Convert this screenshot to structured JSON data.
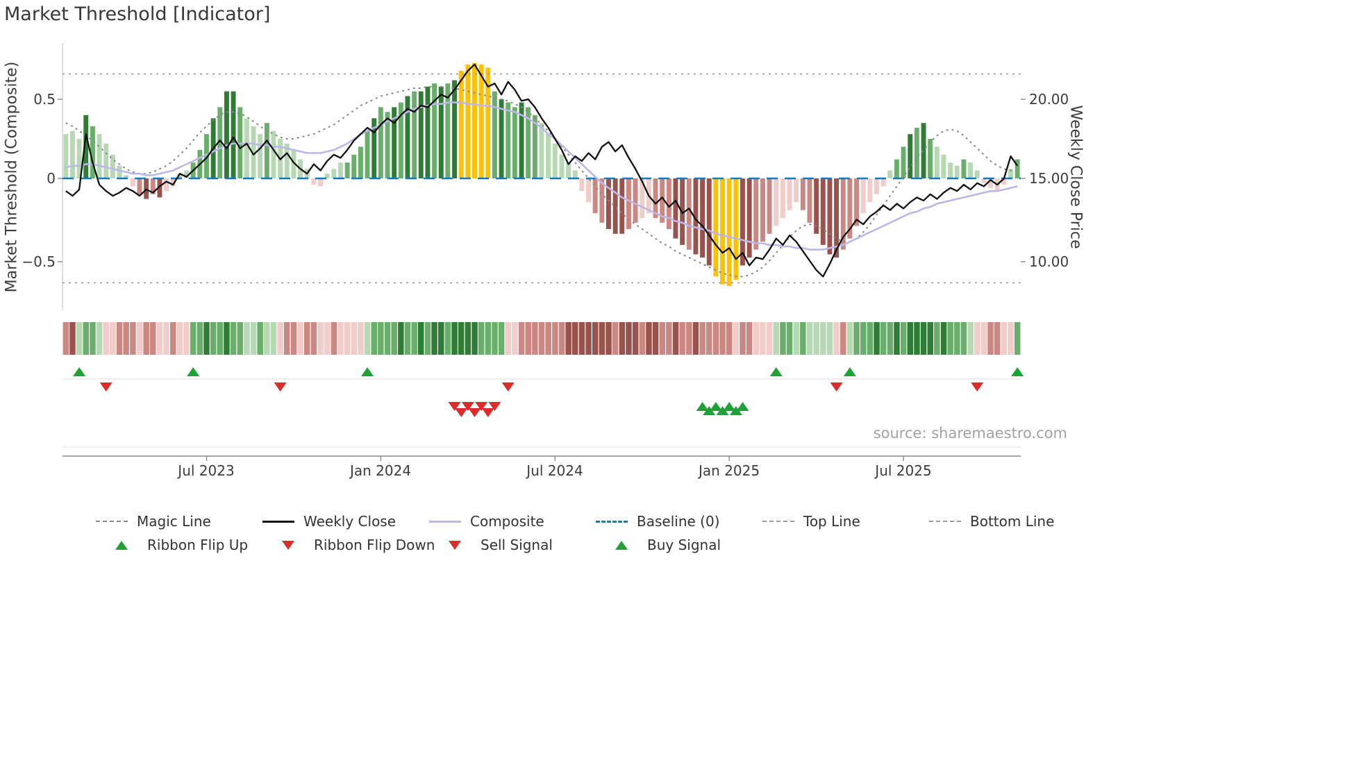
{
  "title": "Market Threshold [Indicator]",
  "source": "source: sharemaestro.com",
  "axes": {
    "left_title": "Market Threshold (Composite)",
    "right_title": "Weekly Close Price",
    "left_ticks": [
      {
        "label": "0.5",
        "value": 0.5
      },
      {
        "label": "0",
        "value": 0
      },
      {
        "label": "−0.5",
        "value": -0.5
      }
    ],
    "right_ticks": [
      {
        "label": "20.00",
        "value": 20
      },
      {
        "label": "15.00",
        "value": 15
      },
      {
        "label": "10.00",
        "value": 10
      }
    ],
    "x_ticks": [
      {
        "label": "Jul 2023",
        "index": 21
      },
      {
        "label": "Jan 2024",
        "index": 47
      },
      {
        "label": "Jul 2024",
        "index": 73
      },
      {
        "label": "Jan 2025",
        "index": 99
      },
      {
        "label": "Jul 2025",
        "index": 125
      }
    ]
  },
  "palette": {
    "green": {
      "1": "#b6d9b4",
      "2": "#69ae6b",
      "3": "#2f7c34"
    },
    "red": {
      "1": "#f1ccc8",
      "2": "#cb8781",
      "3": "#99524c"
    },
    "yellow": "#fcc203",
    "weekly_close": "#111111",
    "composite_line": "#bdb7e8",
    "magic_line": "#8a8a8a",
    "baseline": "#1f77b4",
    "ref_line": "#9a9a9a",
    "marker_green": "#21a038",
    "marker_red": "#dd2c2c"
  },
  "chart_data": {
    "type": "bar",
    "description": "Weekly market-threshold composite histogram (left axis) with overlaid weekly close price (right axis), composite and magic lines, ribbon strip and trade signals. X axis is weekly from Feb 2023 to Nov 2025.",
    "ylim_left": [
      -0.8,
      0.85
    ],
    "ylim_right": [
      7.0,
      23.5
    ],
    "bars": {
      "name": "Threshold Histogram",
      "axis": "left",
      "values": [
        0.28,
        0.3,
        0.25,
        0.4,
        0.33,
        0.28,
        0.22,
        0.15,
        0.08,
        0.02,
        -0.05,
        -0.1,
        -0.13,
        -0.1,
        -0.12,
        -0.08,
        -0.05,
        0.03,
        0.05,
        0.1,
        0.18,
        0.28,
        0.38,
        0.45,
        0.55,
        0.55,
        0.45,
        0.38,
        0.33,
        0.28,
        0.35,
        0.3,
        0.25,
        0.22,
        0.18,
        0.12,
        0.06,
        -0.04,
        -0.05,
        0.03,
        0.06,
        0.1,
        0.1,
        0.15,
        0.2,
        0.3,
        0.38,
        0.45,
        0.42,
        0.45,
        0.48,
        0.52,
        0.55,
        0.55,
        0.58,
        0.6,
        0.58,
        0.6,
        0.62,
        0.68,
        0.72,
        0.73,
        0.72,
        0.7,
        0.55,
        0.5,
        0.48,
        0.45,
        0.48,
        0.45,
        0.4,
        0.35,
        0.28,
        0.22,
        0.15,
        0.1,
        0.05,
        -0.08,
        -0.15,
        -0.22,
        -0.28,
        -0.32,
        -0.35,
        -0.35,
        -0.32,
        -0.28,
        -0.25,
        -0.22,
        -0.25,
        -0.28,
        -0.32,
        -0.38,
        -0.42,
        -0.45,
        -0.48,
        -0.5,
        -0.55,
        -0.62,
        -0.67,
        -0.68,
        -0.64,
        -0.55,
        -0.5,
        -0.45,
        -0.4,
        -0.35,
        -0.3,
        -0.25,
        -0.2,
        -0.15,
        -0.2,
        -0.28,
        -0.35,
        -0.42,
        -0.48,
        -0.5,
        -0.45,
        -0.38,
        -0.3,
        -0.22,
        -0.15,
        -0.1,
        -0.05,
        0.05,
        0.12,
        0.2,
        0.28,
        0.32,
        0.35,
        0.25,
        0.2,
        0.15,
        0.1,
        0.08,
        0.12,
        0.1,
        0.05,
        -0.03,
        -0.06,
        -0.08,
        -0.04,
        0.06,
        0.12
      ],
      "shades": [
        "g1",
        "g1",
        "g1",
        "g3",
        "g2",
        "g1",
        "g1",
        "g1",
        "g1",
        "g1",
        "r1",
        "r2",
        "r3",
        "r2",
        "r3",
        "r1",
        "r1",
        "g1",
        "g1",
        "g2",
        "g2",
        "g2",
        "g3",
        "g2",
        "g3",
        "g3",
        "g2",
        "g1",
        "g1",
        "g1",
        "g2",
        "g1",
        "g1",
        "g1",
        "g1",
        "g1",
        "g1",
        "r1",
        "r1",
        "g1",
        "g1",
        "g1",
        "g2",
        "g2",
        "g2",
        "g2",
        "g3",
        "g2",
        "g2",
        "g3",
        "g2",
        "g3",
        "g2",
        "g3",
        "g3",
        "g2",
        "g3",
        "g2",
        "g3",
        "y",
        "y",
        "y",
        "y",
        "y",
        "g2",
        "g3",
        "g2",
        "g2",
        "g3",
        "g2",
        "g2",
        "g1",
        "g1",
        "g1",
        "g1",
        "g1",
        "g1",
        "r1",
        "r1",
        "r2",
        "r2",
        "r3",
        "r3",
        "r3",
        "r2",
        "r2",
        "r1",
        "r1",
        "r2",
        "r2",
        "r2",
        "r3",
        "r3",
        "r2",
        "r3",
        "r3",
        "r3",
        "y",
        "y",
        "y",
        "y",
        "r3",
        "r3",
        "r2",
        "r2",
        "r2",
        "r1",
        "r1",
        "r1",
        "r1",
        "r2",
        "r2",
        "r3",
        "r3",
        "r3",
        "r3",
        "r2",
        "r2",
        "r2",
        "r1",
        "r1",
        "r1",
        "r1",
        "g1",
        "g2",
        "g2",
        "g3",
        "g2",
        "g3",
        "g2",
        "g1",
        "g1",
        "g1",
        "g1",
        "g2",
        "g1",
        "g1",
        "r1",
        "r1",
        "r1",
        "r1",
        "g1",
        "g2"
      ],
      "overbought_yellow_indices": [
        59,
        60,
        61,
        62,
        63
      ],
      "oversold_yellow_indices": [
        97,
        98,
        99,
        100
      ]
    },
    "line_series": [
      {
        "name": "Weekly Close",
        "axis": "right",
        "color_key": "weekly_close",
        "values": [
          14.2,
          13.9,
          14.3,
          17.8,
          16.0,
          14.6,
          14.2,
          13.9,
          14.1,
          14.4,
          14.2,
          13.9,
          14.3,
          14.1,
          14.5,
          14.8,
          14.6,
          15.3,
          15.1,
          15.5,
          15.9,
          16.3,
          16.9,
          17.4,
          16.9,
          17.6,
          16.9,
          17.2,
          16.5,
          16.9,
          17.4,
          16.8,
          16.2,
          16.6,
          16.0,
          15.6,
          15.3,
          15.9,
          15.5,
          16.1,
          16.5,
          16.3,
          16.8,
          17.4,
          17.8,
          18.2,
          17.9,
          18.4,
          18.8,
          18.5,
          19.0,
          19.4,
          19.2,
          19.6,
          19.5,
          19.9,
          20.3,
          20.1,
          20.6,
          21.2,
          21.8,
          22.2,
          21.5,
          20.8,
          21.0,
          20.3,
          21.1,
          20.6,
          19.9,
          20.0,
          19.5,
          18.8,
          18.2,
          17.5,
          16.8,
          15.9,
          16.4,
          16.1,
          16.6,
          16.2,
          17.0,
          17.3,
          16.7,
          17.1,
          16.3,
          15.6,
          14.8,
          13.9,
          13.4,
          13.8,
          13.2,
          13.6,
          12.8,
          13.1,
          12.4,
          12.0,
          11.4,
          10.8,
          10.3,
          10.6,
          9.9,
          10.3,
          9.5,
          10.0,
          9.9,
          10.5,
          11.2,
          10.8,
          11.4,
          11.0,
          10.4,
          9.8,
          9.2,
          8.8,
          9.6,
          10.5,
          11.3,
          11.8,
          12.4,
          12.1,
          12.6,
          12.9,
          13.3,
          13.0,
          13.4,
          13.1,
          13.5,
          13.8,
          13.6,
          14.0,
          13.7,
          14.1,
          14.4,
          14.2,
          14.6,
          14.3,
          14.7,
          14.5,
          14.9,
          14.6,
          15.0,
          16.4,
          15.8
        ]
      },
      {
        "name": "Composite",
        "axis": "left",
        "color_key": "composite_line",
        "values": [
          0.07,
          0.08,
          0.08,
          0.09,
          0.09,
          0.08,
          0.07,
          0.06,
          0.05,
          0.04,
          0.03,
          0.03,
          0.02,
          0.02,
          0.03,
          0.04,
          0.05,
          0.07,
          0.09,
          0.11,
          0.13,
          0.15,
          0.17,
          0.19,
          0.21,
          0.22,
          0.22,
          0.22,
          0.22,
          0.21,
          0.21,
          0.2,
          0.2,
          0.19,
          0.18,
          0.17,
          0.16,
          0.16,
          0.16,
          0.17,
          0.18,
          0.2,
          0.22,
          0.25,
          0.28,
          0.3,
          0.32,
          0.34,
          0.36,
          0.38,
          0.4,
          0.42,
          0.44,
          0.45,
          0.46,
          0.47,
          0.47,
          0.48,
          0.48,
          0.48,
          0.47,
          0.47,
          0.46,
          0.46,
          0.45,
          0.44,
          0.43,
          0.42,
          0.4,
          0.38,
          0.35,
          0.32,
          0.28,
          0.25,
          0.21,
          0.17,
          0.13,
          0.09,
          0.05,
          0.01,
          -0.03,
          -0.06,
          -0.09,
          -0.12,
          -0.14,
          -0.16,
          -0.18,
          -0.2,
          -0.22,
          -0.24,
          -0.25,
          -0.27,
          -0.28,
          -0.3,
          -0.31,
          -0.32,
          -0.33,
          -0.35,
          -0.36,
          -0.37,
          -0.38,
          -0.39,
          -0.4,
          -0.41,
          -0.41,
          -0.42,
          -0.42,
          -0.43,
          -0.43,
          -0.44,
          -0.44,
          -0.45,
          -0.45,
          -0.45,
          -0.44,
          -0.43,
          -0.42,
          -0.4,
          -0.38,
          -0.36,
          -0.34,
          -0.32,
          -0.3,
          -0.28,
          -0.26,
          -0.24,
          -0.22,
          -0.21,
          -0.19,
          -0.18,
          -0.16,
          -0.15,
          -0.14,
          -0.13,
          -0.12,
          -0.11,
          -0.1,
          -0.09,
          -0.08,
          -0.08,
          -0.07,
          -0.06,
          -0.05
        ]
      },
      {
        "name": "Magic Line",
        "axis": "left",
        "color_key": "magic_line",
        "values": [
          0.35,
          0.33,
          0.3,
          0.27,
          0.24,
          0.2,
          0.16,
          0.12,
          0.09,
          0.06,
          0.04,
          0.03,
          0.03,
          0.04,
          0.06,
          0.08,
          0.11,
          0.15,
          0.19,
          0.24,
          0.29,
          0.33,
          0.37,
          0.4,
          0.42,
          0.42,
          0.41,
          0.39,
          0.36,
          0.33,
          0.3,
          0.28,
          0.26,
          0.25,
          0.25,
          0.26,
          0.27,
          0.28,
          0.3,
          0.32,
          0.34,
          0.37,
          0.4,
          0.43,
          0.46,
          0.48,
          0.5,
          0.52,
          0.53,
          0.54,
          0.55,
          0.56,
          0.57,
          0.57,
          0.58,
          0.58,
          0.58,
          0.57,
          0.57,
          0.56,
          0.55,
          0.54,
          0.53,
          0.52,
          0.51,
          0.5,
          0.49,
          0.47,
          0.45,
          0.42,
          0.38,
          0.34,
          0.3,
          0.25,
          0.2,
          0.15,
          0.1,
          0.05,
          0.0,
          -0.05,
          -0.1,
          -0.14,
          -0.18,
          -0.22,
          -0.26,
          -0.29,
          -0.32,
          -0.35,
          -0.38,
          -0.41,
          -0.43,
          -0.46,
          -0.48,
          -0.5,
          -0.52,
          -0.54,
          -0.56,
          -0.58,
          -0.6,
          -0.61,
          -0.62,
          -0.62,
          -0.61,
          -0.59,
          -0.56,
          -0.52,
          -0.47,
          -0.42,
          -0.37,
          -0.33,
          -0.3,
          -0.29,
          -0.3,
          -0.32,
          -0.35,
          -0.38,
          -0.4,
          -0.4,
          -0.38,
          -0.34,
          -0.29,
          -0.23,
          -0.17,
          -0.11,
          -0.05,
          0.01,
          0.07,
          0.13,
          0.18,
          0.23,
          0.27,
          0.3,
          0.31,
          0.3,
          0.27,
          0.23,
          0.19,
          0.15,
          0.11,
          0.08,
          0.06,
          0.05,
          0.05
        ]
      }
    ],
    "reference_lines": {
      "baseline": 0,
      "top_line": 0.66,
      "bottom_line": -0.66
    },
    "ribbon": {
      "name": "Ribbon Strip",
      "shades": [
        "r2",
        "r3",
        "g1",
        "g2",
        "g2",
        "g1",
        "r1",
        "r1",
        "r2",
        "r2",
        "r2",
        "r1",
        "r2",
        "r2",
        "r1",
        "r1",
        "r2",
        "r1",
        "r1",
        "g2",
        "g2",
        "g3",
        "g2",
        "g2",
        "g3",
        "g2",
        "g2",
        "g1",
        "g1",
        "g2",
        "g1",
        "g1",
        "r1",
        "r2",
        "r2",
        "r1",
        "r2",
        "r2",
        "r1",
        "r1",
        "r2",
        "r1",
        "r1",
        "r1",
        "r1",
        "g1",
        "g2",
        "g2",
        "g2",
        "g2",
        "g3",
        "g2",
        "g2",
        "g3",
        "g2",
        "g3",
        "g3",
        "g2",
        "g3",
        "g3",
        "g3",
        "g3",
        "g2",
        "g2",
        "g2",
        "g2",
        "r1",
        "r1",
        "r2",
        "r2",
        "r2",
        "r2",
        "r2",
        "r2",
        "r2",
        "r3",
        "r3",
        "r3",
        "r3",
        "r3",
        "r3",
        "r3",
        "r2",
        "r3",
        "r3",
        "r3",
        "r2",
        "r3",
        "r3",
        "r2",
        "r2",
        "r3",
        "r2",
        "r2",
        "r3",
        "r2",
        "r2",
        "r2",
        "r2",
        "r2",
        "r1",
        "r2",
        "r2",
        "r1",
        "r1",
        "r1",
        "g1",
        "g2",
        "g2",
        "g1",
        "g2",
        "g1",
        "g1",
        "g1",
        "g1",
        "r1",
        "r2",
        "g1",
        "g2",
        "g2",
        "g2",
        "g3",
        "g2",
        "g2",
        "g3",
        "g2",
        "g3",
        "g3",
        "g3",
        "g3",
        "g2",
        "g3",
        "g2",
        "g2",
        "g2",
        "g1",
        "r1",
        "r1",
        "r2",
        "r2",
        "r1",
        "r1",
        "g2"
      ]
    },
    "signals": {
      "ribbon_flip_up": [
        2,
        19,
        45,
        106,
        117,
        142
      ],
      "ribbon_flip_down": [
        6,
        32,
        66,
        115,
        136
      ],
      "sell": [
        58,
        59,
        60,
        61,
        62,
        63,
        64
      ],
      "buy": [
        95,
        96,
        97,
        98,
        99,
        100,
        101
      ]
    }
  },
  "legend": {
    "row1": [
      {
        "label": "Magic Line"
      },
      {
        "label": "Weekly Close"
      },
      {
        "label": "Composite"
      },
      {
        "label": "Baseline (0)"
      },
      {
        "label": "Top Line"
      },
      {
        "label": "Bottom Line"
      }
    ],
    "row2": [
      {
        "label": "Ribbon Flip Up"
      },
      {
        "label": "Ribbon Flip Down"
      },
      {
        "label": "Sell Signal"
      },
      {
        "label": "Buy Signal"
      }
    ]
  }
}
